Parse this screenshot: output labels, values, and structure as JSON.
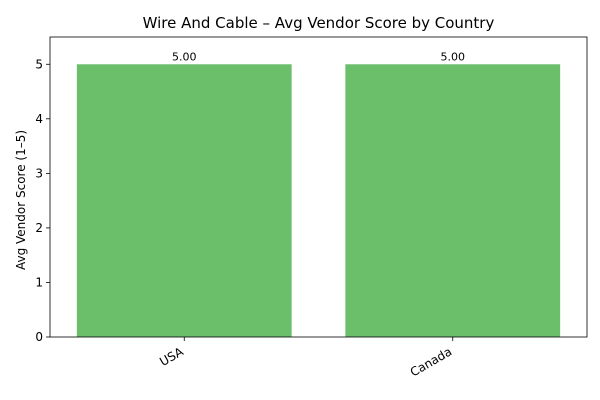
{
  "chart_data": {
    "type": "bar",
    "title": "Wire And Cable – Avg Vendor Score by Country",
    "xlabel": "",
    "ylabel": "Avg Vendor Score (1–5)",
    "categories": [
      "USA",
      "Canada"
    ],
    "values": [
      5.0,
      5.0
    ],
    "data_labels": [
      "5.00",
      "5.00"
    ],
    "ylim": [
      0,
      5.5
    ],
    "yticks": [
      0,
      1,
      2,
      3,
      4,
      5
    ],
    "bar_color": "#6bbf6b",
    "grid": false,
    "legend": "none"
  }
}
